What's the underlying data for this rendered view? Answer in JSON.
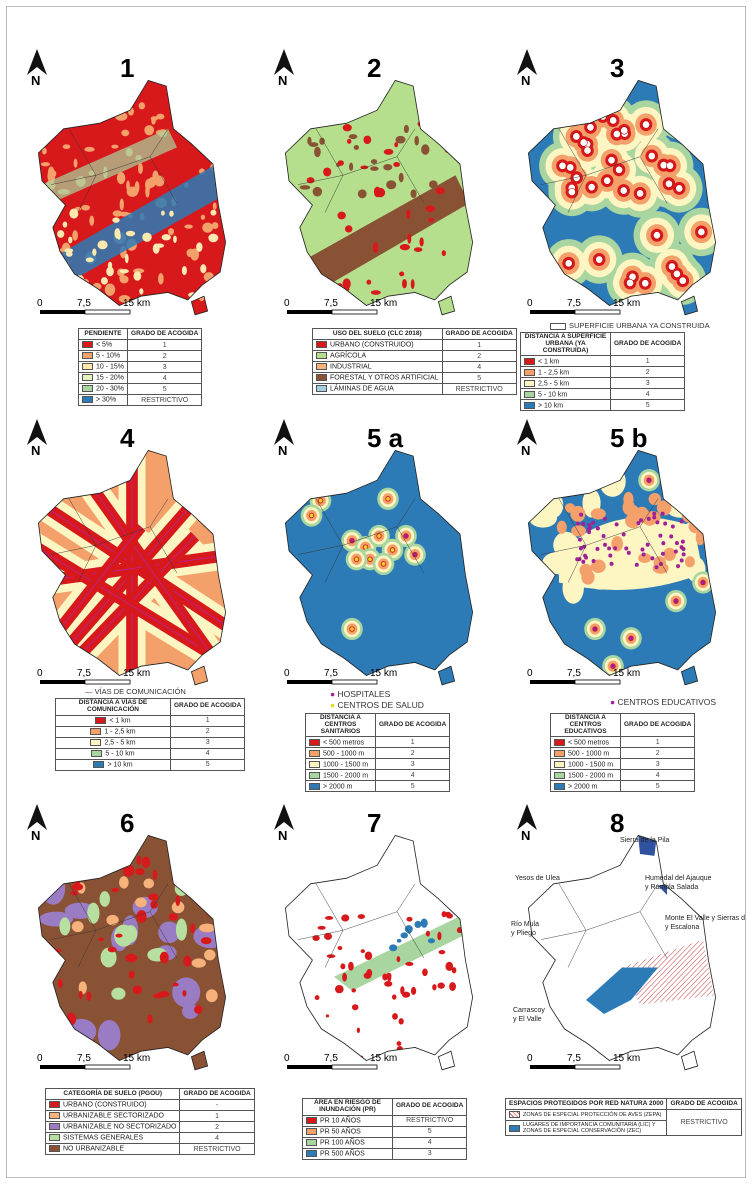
{
  "north_label": "N",
  "scale": {
    "zero": "0",
    "mid": "7,5",
    "end": "15 km"
  },
  "grade_header": "GRADO DE ACOGIDA",
  "maps": [
    {
      "number": "1",
      "legend_title": "PENDIENTE",
      "rows": [
        {
          "label": "< 5%",
          "grade": "1",
          "color": "#d7191c"
        },
        {
          "label": "5 - 10%",
          "grade": "2",
          "color": "#f4a06a"
        },
        {
          "label": "10 - 15%",
          "grade": "3",
          "color": "#fde9b0"
        },
        {
          "label": "15 - 20%",
          "grade": "4",
          "color": "#e6f5c0"
        },
        {
          "label": "20 - 30%",
          "grade": "5",
          "color": "#a8d5a0"
        },
        {
          "label": "> 30%",
          "grade": "RESTRICTIVO",
          "color": "#2c7bb6"
        }
      ]
    },
    {
      "number": "2",
      "legend_title": "USO DEL SUELO (CLC 2018)",
      "rows": [
        {
          "label": "URBANO (CONSTRUIDO)",
          "grade": "1",
          "color": "#d7191c"
        },
        {
          "label": "AGRÍCOLA",
          "grade": "2",
          "color": "#b5de8d"
        },
        {
          "label": "INDUSTRIAL",
          "grade": "4",
          "color": "#f6b27a"
        },
        {
          "label": "FORESTAL Y OTROS ARTIFICIAL",
          "grade": "5",
          "color": "#8a5235"
        },
        {
          "label": "LÁMINAS DE AGUA",
          "grade": "RESTRICTIVO",
          "color": "#a6cee3"
        }
      ]
    },
    {
      "number": "3",
      "legend_title": "DISTANCIA A SUPERFICIE URBANA (YA CONSTRUIDA)",
      "extra": "SUPERFICIE URBANA YA CONSTRUIDA",
      "rows": [
        {
          "label": "< 1 km",
          "grade": "1",
          "color": "#d7191c"
        },
        {
          "label": "1 - 2,5  km",
          "grade": "2",
          "color": "#f4a06a"
        },
        {
          "label": "2,5 - 5 km",
          "grade": "3",
          "color": "#fdf6c3"
        },
        {
          "label": "5 - 10 km",
          "grade": "4",
          "color": "#a8d5a0"
        },
        {
          "label": "> 10 km",
          "grade": "5",
          "color": "#2c7bb6"
        }
      ]
    },
    {
      "number": "4",
      "legend_title": "DISTANCIA A VÍAS DE COMUNICACIÓN",
      "extra": "VÍAS DE COMUNICACIÓN",
      "rows": [
        {
          "label": "< 1 km",
          "grade": "1",
          "color": "#d7191c"
        },
        {
          "label": "1 - 2,5  km",
          "grade": "2",
          "color": "#f4a06a"
        },
        {
          "label": "2,5 - 5 km",
          "grade": "3",
          "color": "#fdf6c3"
        },
        {
          "label": "5 - 10 km",
          "grade": "4",
          "color": "#a8d5a0"
        },
        {
          "label": "> 10 km",
          "grade": "5",
          "color": "#2c7bb6"
        }
      ]
    },
    {
      "number": "5 a",
      "legend_title": "DISTANCIA A CENTROS SANITARIOS",
      "extra_points": [
        {
          "label": "HOSPITALES",
          "color": "#a0209a"
        },
        {
          "label": "CENTROS DE SALUD",
          "color": "#e8d820"
        }
      ],
      "rows": [
        {
          "label": "< 500 metros",
          "grade": "1",
          "color": "#d7191c"
        },
        {
          "label": "500 - 1000 m",
          "grade": "2",
          "color": "#f4a06a"
        },
        {
          "label": "1000 - 1500 m",
          "grade": "3",
          "color": "#fdf6c3"
        },
        {
          "label": "1500 - 2000 m",
          "grade": "4",
          "color": "#a8d5a0"
        },
        {
          "label": "> 2000 m",
          "grade": "5",
          "color": "#2c7bb6"
        }
      ]
    },
    {
      "number": "5 b",
      "legend_title": "DISTANCIA A CENTROS EDUCATIVOS",
      "extra_points": [
        {
          "label": "CENTROS EDUCATIVOS",
          "color": "#a0209a"
        }
      ],
      "rows": [
        {
          "label": "< 500 metros",
          "grade": "1",
          "color": "#d7191c"
        },
        {
          "label": "500 - 1000 m",
          "grade": "2",
          "color": "#f4a06a"
        },
        {
          "label": "1000 - 1500 m",
          "grade": "3",
          "color": "#fdf6c3"
        },
        {
          "label": "1500 - 2000 m",
          "grade": "4",
          "color": "#a8d5a0"
        },
        {
          "label": "> 2000 m",
          "grade": "5",
          "color": "#2c7bb6"
        }
      ]
    },
    {
      "number": "6",
      "legend_title": "CATEGORÍA DE SUELO (PGOU)",
      "rows": [
        {
          "label": "URBANO (CONSTRUIDO)",
          "grade": "-",
          "color": "#d7191c"
        },
        {
          "label": "URBANIZABLE SECTORIZADO",
          "grade": "1",
          "color": "#f6b27a"
        },
        {
          "label": "URBANIZABLE NO SECTORIZADO",
          "grade": "2",
          "color": "#9a7cc4"
        },
        {
          "label": "SISTEMAS GENERALES",
          "grade": "4",
          "color": "#b7e0a0"
        },
        {
          "label": "NO URBANIZABLE",
          "grade": "RESTRICTIVO",
          "color": "#8a5235"
        }
      ]
    },
    {
      "number": "7",
      "legend_title": "ÁREA EN RIESGO DE INUNDACIÓN (PR)",
      "rows": [
        {
          "label": "PR 10 AÑOS",
          "grade": "RESTRICTIVO",
          "color": "#d7191c"
        },
        {
          "label": "PR 50 AÑOS",
          "grade": "5",
          "color": "#f4a06a"
        },
        {
          "label": "PR 100 AÑOS",
          "grade": "4",
          "color": "#a8d5a0"
        },
        {
          "label": "PR 500 AÑOS",
          "grade": "3",
          "color": "#2c7bb6"
        }
      ]
    },
    {
      "number": "8",
      "legend_title": "ESPACIOS PROTEGIDOS POR RED NATURA 2000",
      "rows": [
        {
          "label": "ZONAS DE ESPECIAL PROTECCIÓN DE AVES (ZEPA)",
          "grade": "RESTRICTIVO",
          "color": "#e8a0a0"
        },
        {
          "label": "LUGARES DE IMPORTANCIA COMUNITARIA (LIC) Y ZONAS DE ESPECIAL CONSERVACIÓN (ZEC)",
          "grade": "",
          "color": "#2c7bb6"
        }
      ],
      "place_labels": [
        "Sierra de la Pila",
        "Yesos de Ulea",
        "Humedal del Ajauque y Rambla Salada",
        "Monte El Valle y Sierras de Altaona y Escalona",
        "Río Mula y Pliego",
        "Carrascoy y El Valle"
      ]
    }
  ]
}
